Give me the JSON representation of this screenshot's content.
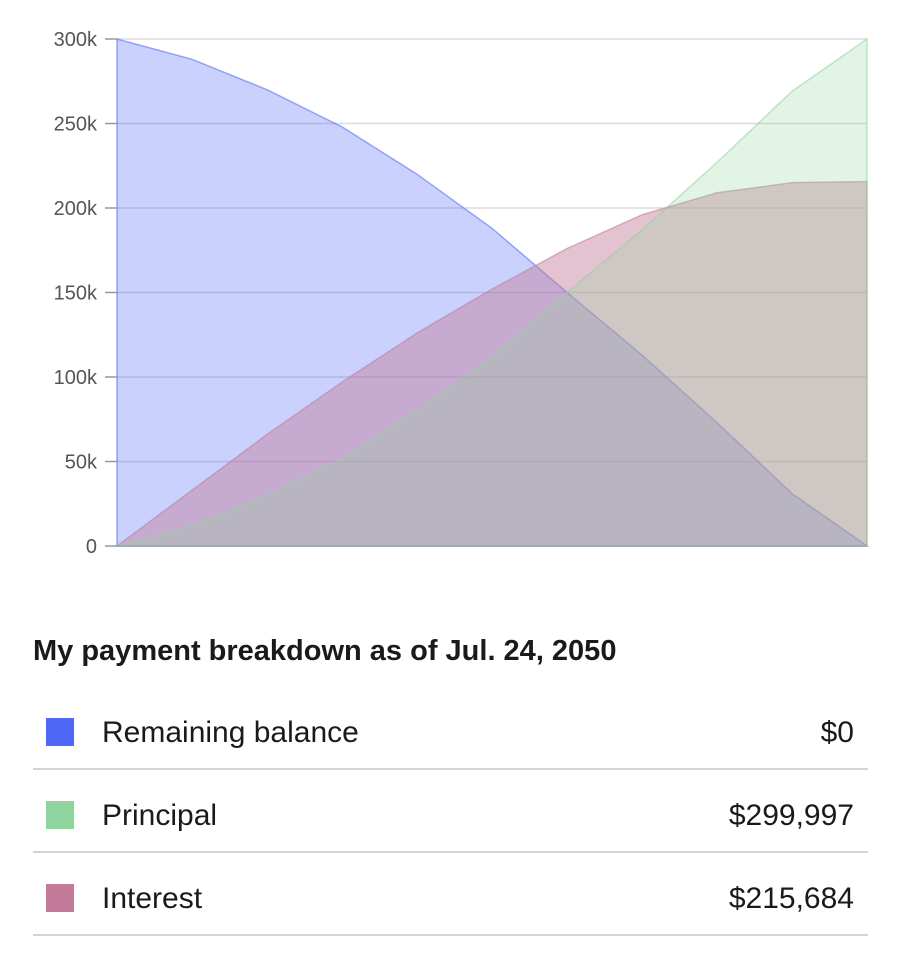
{
  "chart_data": {
    "type": "area",
    "yticks": [
      0,
      50000,
      100000,
      150000,
      200000,
      250000,
      300000
    ],
    "ytick_labels": [
      "0",
      "50k",
      "100k",
      "150k",
      "200k",
      "250k",
      "300k"
    ],
    "ylim": [
      0,
      300000
    ],
    "xlabel": "",
    "ylabel": "",
    "grid": true,
    "x": [
      0,
      0.1,
      0.2,
      0.3,
      0.4,
      0.5,
      0.6,
      0.7,
      0.8,
      0.9,
      1.0
    ],
    "series": [
      {
        "name": "Remaining balance",
        "color": "#4f67f5",
        "values": [
          300000,
          288000,
          270000,
          248000,
          220000,
          188000,
          150000,
          113000,
          73000,
          31000,
          0
        ]
      },
      {
        "name": "Principal",
        "color": "#8fd49c",
        "values": [
          0,
          12000,
          30000,
          52000,
          80000,
          112000,
          150000,
          187000,
          227000,
          269000,
          299997
        ]
      },
      {
        "name": "Interest",
        "color": "#c47b99",
        "values": [
          0,
          33000,
          66000,
          97000,
          126000,
          152000,
          176000,
          196000,
          209000,
          215000,
          215684
        ]
      }
    ]
  },
  "breakdown": {
    "title": "My payment breakdown as of Jul. 24, 2050",
    "items": [
      {
        "label": "Remaining balance",
        "value": "$0",
        "color": "#4f67f5"
      },
      {
        "label": "Principal",
        "value": "$299,997",
        "color": "#8fd49c"
      },
      {
        "label": "Interest",
        "value": "$215,684",
        "color": "#c47b99"
      }
    ]
  }
}
